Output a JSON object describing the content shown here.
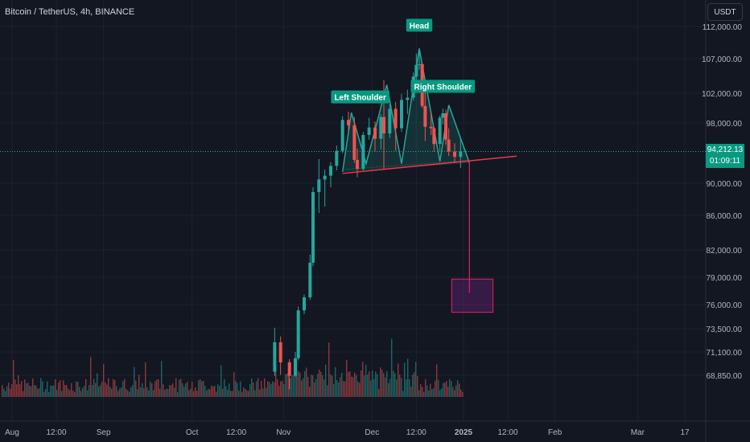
{
  "header": {
    "title": "Bitcoin / TetherUS, 4h, BINANCE",
    "currency": "USDT"
  },
  "price_tag": {
    "price": "94,212.13",
    "countdown": "01:09:11"
  },
  "colors": {
    "background": "#131722",
    "grid": "#1e222d",
    "text": "#b2b5be",
    "up": "#26a69a",
    "down": "#ef5350",
    "pattern": "#26a69a",
    "neckline": "#f23645",
    "target": "#e91e63",
    "label_bg": "#089981"
  },
  "chart_data": {
    "type": "candlestick",
    "title": "Bitcoin / TetherUS, 4h, BINANCE",
    "y_ticks": [
      {
        "label": "112,000.00",
        "v": 112000
      },
      {
        "label": "107,000.00",
        "v": 107000
      },
      {
        "label": "102,000.00",
        "v": 102000
      },
      {
        "label": "98,000.00",
        "v": 98000
      },
      {
        "label": "90,000.00",
        "v": 90000
      },
      {
        "label": "86,000.00",
        "v": 86000
      },
      {
        "label": "82,000.00",
        "v": 82000
      },
      {
        "label": "79,000.00",
        "v": 79000
      },
      {
        "label": "76,000.00",
        "v": 76000
      },
      {
        "label": "73,500.00",
        "v": 73500
      },
      {
        "label": "71,100.00",
        "v": 71100
      },
      {
        "label": "68,850.00",
        "v": 68850
      }
    ],
    "x_ticks": [
      {
        "label": "Aug",
        "d": "2024-08-01"
      },
      {
        "label": "12:00",
        "d": "2024-08-16"
      },
      {
        "label": "Sep",
        "d": "2024-09-01"
      },
      {
        "label": "Oct",
        "d": "2024-10-01"
      },
      {
        "label": "12:00",
        "d": "2024-10-16"
      },
      {
        "label": "Nov",
        "d": "2024-11-01"
      },
      {
        "label": "Dec",
        "d": "2024-12-01"
      },
      {
        "label": "12:00",
        "d": "2024-12-16"
      },
      {
        "label": "2025",
        "d": "2025-01-01"
      },
      {
        "label": "12:00",
        "d": "2025-01-16"
      },
      {
        "label": "Feb",
        "d": "2025-02-01"
      },
      {
        "label": "Mar",
        "d": "2025-03-01"
      },
      {
        "label": "17",
        "d": "2025-03-17"
      }
    ],
    "last_price": 94212.13,
    "series": [
      {
        "name": "candles",
        "points": [
          {
            "d": "2024-10-29",
            "o": 69200,
            "h": 73600,
            "l": 68800,
            "c": 72100
          },
          {
            "d": "2024-10-31",
            "o": 72100,
            "h": 72700,
            "l": 68900,
            "c": 70100
          },
          {
            "d": "2024-11-03",
            "o": 70100,
            "h": 70400,
            "l": 67500,
            "c": 68800
          },
          {
            "d": "2024-11-05",
            "o": 68800,
            "h": 71100,
            "l": 68700,
            "c": 70500
          },
          {
            "d": "2024-11-06",
            "o": 70500,
            "h": 75800,
            "l": 70300,
            "c": 75400
          },
          {
            "d": "2024-11-08",
            "o": 75400,
            "h": 77100,
            "l": 75000,
            "c": 76800
          },
          {
            "d": "2024-11-10",
            "o": 76800,
            "h": 81500,
            "l": 76500,
            "c": 80600
          },
          {
            "d": "2024-11-11",
            "o": 80600,
            "h": 89500,
            "l": 80200,
            "c": 88900
          },
          {
            "d": "2024-11-13",
            "o": 88900,
            "h": 93200,
            "l": 86300,
            "c": 90500
          },
          {
            "d": "2024-11-15",
            "o": 90500,
            "h": 91800,
            "l": 87100,
            "c": 91000
          },
          {
            "d": "2024-11-17",
            "o": 91000,
            "h": 92800,
            "l": 89500,
            "c": 92300
          },
          {
            "d": "2024-11-19",
            "o": 92300,
            "h": 95000,
            "l": 91700,
            "c": 94300
          },
          {
            "d": "2024-11-21",
            "o": 94300,
            "h": 98900,
            "l": 94000,
            "c": 98400
          },
          {
            "d": "2024-11-23",
            "o": 98400,
            "h": 99500,
            "l": 96900,
            "c": 97700
          },
          {
            "d": "2024-11-25",
            "o": 97700,
            "h": 98800,
            "l": 92700,
            "c": 93100
          },
          {
            "d": "2024-11-26",
            "o": 93100,
            "h": 94600,
            "l": 90800,
            "c": 91900
          },
          {
            "d": "2024-11-28",
            "o": 91900,
            "h": 96800,
            "l": 91700,
            "c": 96400
          },
          {
            "d": "2024-11-30",
            "o": 96400,
            "h": 98700,
            "l": 95800,
            "c": 97400
          },
          {
            "d": "2024-12-02",
            "o": 97400,
            "h": 98200,
            "l": 94200,
            "c": 95900
          },
          {
            "d": "2024-12-04",
            "o": 95900,
            "h": 99200,
            "l": 94500,
            "c": 98800
          },
          {
            "d": "2024-12-05",
            "o": 98800,
            "h": 103900,
            "l": 91900,
            "c": 96600
          },
          {
            "d": "2024-12-07",
            "o": 96600,
            "h": 100500,
            "l": 96000,
            "c": 99900
          },
          {
            "d": "2024-12-09",
            "o": 99900,
            "h": 100800,
            "l": 94300,
            "c": 97300
          },
          {
            "d": "2024-12-11",
            "o": 97300,
            "h": 101900,
            "l": 96800,
            "c": 101100
          },
          {
            "d": "2024-12-13",
            "o": 101100,
            "h": 102500,
            "l": 99200,
            "c": 101400
          },
          {
            "d": "2024-12-15",
            "o": 101400,
            "h": 105000,
            "l": 101000,
            "c": 104400
          },
          {
            "d": "2024-12-16",
            "o": 104400,
            "h": 107800,
            "l": 103800,
            "c": 106100
          },
          {
            "d": "2024-12-17",
            "o": 106100,
            "h": 108400,
            "l": 105400,
            "c": 106200
          },
          {
            "d": "2024-12-18",
            "o": 106200,
            "h": 106400,
            "l": 100000,
            "c": 100300
          },
          {
            "d": "2024-12-19",
            "o": 100300,
            "h": 102800,
            "l": 95600,
            "c": 97500
          },
          {
            "d": "2024-12-21",
            "o": 97500,
            "h": 99500,
            "l": 96400,
            "c": 97300
          },
          {
            "d": "2024-12-22",
            "o": 97300,
            "h": 97500,
            "l": 94200,
            "c": 95200
          },
          {
            "d": "2024-12-24",
            "o": 95200,
            "h": 99000,
            "l": 94200,
            "c": 98700
          },
          {
            "d": "2024-12-25",
            "o": 98700,
            "h": 99900,
            "l": 97800,
            "c": 99300
          },
          {
            "d": "2024-12-26",
            "o": 99300,
            "h": 99800,
            "l": 95100,
            "c": 95800
          },
          {
            "d": "2024-12-27",
            "o": 95800,
            "h": 97300,
            "l": 93600,
            "c": 94200
          },
          {
            "d": "2024-12-29",
            "o": 94200,
            "h": 95300,
            "l": 92800,
            "c": 93500
          },
          {
            "d": "2024-12-31",
            "o": 93500,
            "h": 96000,
            "l": 92000,
            "c": 94212
          }
        ]
      }
    ],
    "annotations": {
      "labels": [
        {
          "text": "Left Shoulder",
          "d": "2024-11-27",
          "v": 101500
        },
        {
          "text": "Head",
          "d": "2024-12-17",
          "v": 112200
        },
        {
          "text": "Right Shoulder",
          "d": "2024-12-25",
          "v": 103000
        }
      ],
      "pattern_points": [
        {
          "d": "2024-11-21",
          "v": 91500
        },
        {
          "d": "2024-11-24",
          "v": 99400
        },
        {
          "d": "2024-11-29",
          "v": 92600
        },
        {
          "d": "2024-12-06",
          "v": 103200
        },
        {
          "d": "2024-12-11",
          "v": 92600
        },
        {
          "d": "2024-12-17",
          "v": 108600
        },
        {
          "d": "2024-12-24",
          "v": 92900
        },
        {
          "d": "2024-12-27",
          "v": 100400
        },
        {
          "d": "2025-01-03",
          "v": 92700
        }
      ],
      "neckline": [
        {
          "d": "2024-11-21",
          "v": 91300
        },
        {
          "d": "2025-01-19",
          "v": 93600
        }
      ],
      "target_line": [
        {
          "d": "2025-01-03",
          "v": 92700
        },
        {
          "d": "2025-01-03",
          "v": 77300
        }
      ],
      "target_box": {
        "d0": "2024-12-28",
        "d1": "2025-01-11",
        "v_top": 78800,
        "v_bottom": 75200
      }
    }
  }
}
